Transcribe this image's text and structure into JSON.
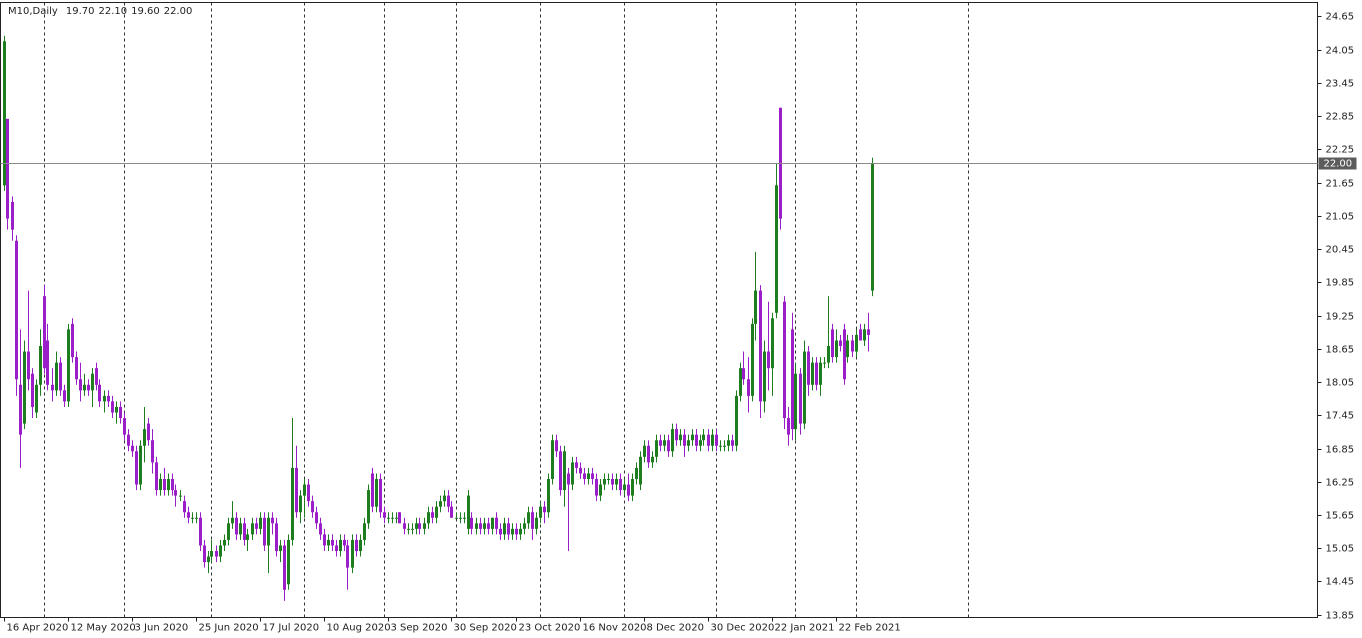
{
  "chart_data": {
    "type": "candlestick",
    "title": "M10,Daily",
    "header_ohlc": [
      {
        "value": 19.7,
        "label": "19.70"
      },
      {
        "value": 22.1,
        "label": "22.10"
      },
      {
        "value": 19.6,
        "label": "19.60"
      },
      {
        "value": 22.0,
        "label": "22.00"
      }
    ],
    "current_price": {
      "value": 22.0,
      "label": "22.00"
    },
    "up_color": "#1e7d1e",
    "down_color": "#9b1fc9",
    "ylim": [
      13.8,
      24.9
    ],
    "yticks": [
      24.65,
      24.05,
      23.45,
      22.85,
      22.25,
      21.65,
      21.05,
      20.45,
      19.85,
      19.25,
      18.65,
      18.05,
      17.45,
      16.85,
      16.25,
      15.65,
      15.05,
      14.45,
      13.85
    ],
    "xlim": [
      -0.75,
      328.5
    ],
    "xticks": [
      {
        "value": 0,
        "label": "16 Apr 2020"
      },
      {
        "value": 16,
        "label": "12 May 2020"
      },
      {
        "value": 32,
        "label": "3 Jun 2020"
      },
      {
        "value": 48,
        "label": "25 Jun 2020"
      },
      {
        "value": 64,
        "label": "17 Jul 2020"
      },
      {
        "value": 80,
        "label": "10 Aug 2020"
      },
      {
        "value": 96,
        "label": "3 Sep 2020"
      },
      {
        "value": 112,
        "label": "30 Sep 2020"
      },
      {
        "value": 128,
        "label": "23 Oct 2020"
      },
      {
        "value": 144,
        "label": "16 Nov 2020"
      },
      {
        "value": 160,
        "label": "8 Dec 2020"
      },
      {
        "value": 176,
        "label": "30 Dec 2020"
      },
      {
        "value": 192,
        "label": "22 Jan 2021"
      },
      {
        "value": 208,
        "label": "22 Feb 2021"
      }
    ],
    "period_separators": [
      10,
      30,
      52,
      75,
      95,
      113,
      134,
      155,
      178,
      198,
      213,
      241
    ],
    "open": [
      21.6,
      22.8,
      21.3,
      20.6,
      18.0,
      17.3,
      18.6,
      18.2,
      17.5,
      18.0,
      19.6,
      18.8,
      18.0,
      17.9,
      18.4,
      17.9,
      17.7,
      19.1,
      18.5,
      18.1,
      17.9,
      18.0,
      17.9,
      18.3,
      18.0,
      17.7,
      17.8,
      17.7,
      17.5,
      17.6,
      17.4,
      17.1,
      16.9,
      16.8,
      16.2,
      16.9,
      17.3,
      17.0,
      16.6,
      16.1,
      16.3,
      16.1,
      16.3,
      16.1,
      16.0,
      15.9,
      15.7,
      15.6,
      15.6,
      15.6,
      15.1,
      14.8,
      14.9,
      15.0,
      14.9,
      15.1,
      15.2,
      15.5,
      15.6,
      15.3,
      15.5,
      15.2,
      15.3,
      15.5,
      15.4,
      15.6,
      15.1,
      15.6,
      15.5,
      15.0,
      15.1,
      14.4,
      15.2,
      16.5,
      15.7,
      16.0,
      16.2,
      15.9,
      15.7,
      15.5,
      15.3,
      15.1,
      15.2,
      15.1,
      15.0,
      15.2,
      15.1,
      14.7,
      15.2,
      15.0,
      15.2,
      15.5,
      16.4,
      15.8,
      16.3,
      15.7,
      15.6,
      15.6,
      15.6,
      15.7,
      15.5,
      15.4,
      15.4,
      15.4,
      15.5,
      15.4,
      15.5,
      15.7,
      15.6,
      15.8,
      15.9,
      16.0,
      15.8,
      15.6,
      15.6,
      15.6,
      15.4,
      15.6,
      15.4,
      15.5,
      15.4,
      15.5,
      15.4,
      15.6,
      15.4,
      15.3,
      15.5,
      15.3,
      15.4,
      15.3,
      15.4,
      15.5,
      15.7,
      15.4,
      15.6,
      15.8,
      15.7,
      16.3,
      17.0,
      16.8,
      16.1,
      16.4,
      16.2,
      16.6,
      16.5,
      16.4,
      16.3,
      16.4,
      16.3,
      16.0,
      16.2,
      16.3,
      16.3,
      16.2,
      16.3,
      16.1,
      16.2,
      16.0,
      16.3,
      16.2,
      16.7,
      16.9,
      16.6,
      16.7,
      17.0,
      16.9,
      17.0,
      16.8,
      17.2,
      17.0,
      17.1,
      16.9,
      17.0,
      17.1,
      16.9,
      17.0,
      17.1,
      16.9,
      17.1,
      16.9,
      16.9,
      16.9,
      17.0,
      16.9,
      17.8,
      18.3,
      18.1,
      17.8,
      19.1,
      19.7,
      17.7,
      18.6,
      18.3,
      19.3,
      23.0,
      19.5,
      17.4,
      19.0,
      17.2,
      18.2,
      17.3,
      18.6,
      18.0,
      18.4,
      18.0,
      18.4,
      18.4,
      19.0,
      18.5,
      18.8,
      19.0,
      18.5,
      18.8,
      18.6,
      19.0,
      18.8,
      19.0,
      19.7
    ],
    "high": [
      24.3,
      22.8,
      21.4,
      20.7,
      19.0,
      18.8,
      19.7,
      18.3,
      18.1,
      19.0,
      19.8,
      19.1,
      18.3,
      18.6,
      18.5,
      18.0,
      19.1,
      19.2,
      18.6,
      18.4,
      18.2,
      18.1,
      18.3,
      18.4,
      18.1,
      17.9,
      17.9,
      17.8,
      17.7,
      17.7,
      17.5,
      17.2,
      17.0,
      16.9,
      17.0,
      17.6,
      17.4,
      17.2,
      16.7,
      16.4,
      16.5,
      16.4,
      16.4,
      16.2,
      16.1,
      16.0,
      15.8,
      15.7,
      15.7,
      15.7,
      15.2,
      15.0,
      15.2,
      15.1,
      15.2,
      15.3,
      15.6,
      15.9,
      15.7,
      15.6,
      15.6,
      15.4,
      15.6,
      15.6,
      15.7,
      15.7,
      15.7,
      15.7,
      15.6,
      15.2,
      15.2,
      15.3,
      17.4,
      16.9,
      16.1,
      16.3,
      16.3,
      16.0,
      15.8,
      15.6,
      15.4,
      15.3,
      15.3,
      15.2,
      15.3,
      15.3,
      15.2,
      15.3,
      15.3,
      15.3,
      15.6,
      16.2,
      16.5,
      16.4,
      16.4,
      15.8,
      15.7,
      15.7,
      15.7,
      15.7,
      15.6,
      15.5,
      15.5,
      15.6,
      15.6,
      15.6,
      15.8,
      15.8,
      15.9,
      16.0,
      16.1,
      16.1,
      15.9,
      15.7,
      15.7,
      15.7,
      16.1,
      15.7,
      15.6,
      15.6,
      15.6,
      15.6,
      15.6,
      15.7,
      15.5,
      15.6,
      15.6,
      15.5,
      15.5,
      15.5,
      15.6,
      15.8,
      15.8,
      15.7,
      15.9,
      15.9,
      16.4,
      17.1,
      17.1,
      16.9,
      16.9,
      16.5,
      16.7,
      16.7,
      16.6,
      16.5,
      16.5,
      16.5,
      16.4,
      16.3,
      16.4,
      16.4,
      16.4,
      16.4,
      16.4,
      16.3,
      16.4,
      16.4,
      16.6,
      16.8,
      17.0,
      17.0,
      16.8,
      17.1,
      17.1,
      17.1,
      17.1,
      17.3,
      17.3,
      17.2,
      17.2,
      17.1,
      17.2,
      17.2,
      17.1,
      17.2,
      17.2,
      17.2,
      17.2,
      17.0,
      17.0,
      17.1,
      17.1,
      17.9,
      18.4,
      18.6,
      18.5,
      19.2,
      20.4,
      19.8,
      18.8,
      19.5,
      19.3,
      22.0,
      23.0,
      19.6,
      17.6,
      19.3,
      18.4,
      18.3,
      18.8,
      18.7,
      18.5,
      18.5,
      18.5,
      18.5,
      19.6,
      19.1,
      19.0,
      18.9,
      19.1,
      18.9,
      18.9,
      19.0,
      19.1,
      19.1,
      19.3,
      22.1
    ],
    "low": [
      21.5,
      20.8,
      20.6,
      17.8,
      16.5,
      17.2,
      17.9,
      17.4,
      17.4,
      17.8,
      18.2,
      17.9,
      17.7,
      17.8,
      17.8,
      17.6,
      17.6,
      18.4,
      18.0,
      17.7,
      17.8,
      17.8,
      17.6,
      17.9,
      17.6,
      17.5,
      17.6,
      17.4,
      17.3,
      17.3,
      17.0,
      16.8,
      16.7,
      16.1,
      16.1,
      16.6,
      16.9,
      16.4,
      16.0,
      16.0,
      16.0,
      16.0,
      16.0,
      15.8,
      15.9,
      15.6,
      15.5,
      15.5,
      15.5,
      15.0,
      14.7,
      14.6,
      14.8,
      14.8,
      14.8,
      15.0,
      15.1,
      15.4,
      15.2,
      15.2,
      15.1,
      15.0,
      15.2,
      15.3,
      15.3,
      15.0,
      14.6,
      15.3,
      14.9,
      14.8,
      14.1,
      14.3,
      15.1,
      15.6,
      15.5,
      15.6,
      15.8,
      15.6,
      15.4,
      15.2,
      15.0,
      15.0,
      15.0,
      14.9,
      14.9,
      15.0,
      14.3,
      14.6,
      14.9,
      14.9,
      15.1,
      15.4,
      15.7,
      15.7,
      15.6,
      15.5,
      15.5,
      15.5,
      15.5,
      15.5,
      15.3,
      15.3,
      15.3,
      15.3,
      15.3,
      15.3,
      15.4,
      15.5,
      15.5,
      15.7,
      15.8,
      15.7,
      15.6,
      15.6,
      15.5,
      15.5,
      15.3,
      15.3,
      15.3,
      15.3,
      15.3,
      15.3,
      15.3,
      15.3,
      15.2,
      15.2,
      15.2,
      15.2,
      15.2,
      15.2,
      15.3,
      15.4,
      15.2,
      15.3,
      15.5,
      15.5,
      15.6,
      16.2,
      16.7,
      16.0,
      15.8,
      15.0,
      16.1,
      16.4,
      16.3,
      16.2,
      16.2,
      16.2,
      15.9,
      15.9,
      16.1,
      16.2,
      16.1,
      16.1,
      16.0,
      16.0,
      15.9,
      15.9,
      16.2,
      16.1,
      16.6,
      16.5,
      16.5,
      16.6,
      16.8,
      16.8,
      16.7,
      16.7,
      16.9,
      16.9,
      16.7,
      16.8,
      16.9,
      16.8,
      16.8,
      16.9,
      16.8,
      16.8,
      16.8,
      16.8,
      16.8,
      16.8,
      16.8,
      16.8,
      17.7,
      18.0,
      17.5,
      17.7,
      18.8,
      17.4,
      17.5,
      17.9,
      17.8,
      19.2,
      20.8,
      17.2,
      16.9,
      17.0,
      17.0,
      17.1,
      17.2,
      17.8,
      17.9,
      17.9,
      17.8,
      18.3,
      18.3,
      18.4,
      18.4,
      18.6,
      18.0,
      18.4,
      18.5,
      18.5,
      18.8,
      18.7,
      18.6,
      19.6
    ],
    "close": [
      24.2,
      21.0,
      20.8,
      18.1,
      17.1,
      18.6,
      18.1,
      17.6,
      18.0,
      18.7,
      18.3,
      18.0,
      17.9,
      18.4,
      17.9,
      17.7,
      19.0,
      18.5,
      18.1,
      17.9,
      18.0,
      17.9,
      18.2,
      18.0,
      17.7,
      17.8,
      17.7,
      17.5,
      17.6,
      17.4,
      17.1,
      16.9,
      16.8,
      16.2,
      16.9,
      17.2,
      17.0,
      16.6,
      16.1,
      16.3,
      16.1,
      16.3,
      16.1,
      16.0,
      16.0,
      15.7,
      15.6,
      15.6,
      15.6,
      15.1,
      14.8,
      14.9,
      15.0,
      14.9,
      15.1,
      15.2,
      15.5,
      15.6,
      15.3,
      15.5,
      15.2,
      15.3,
      15.5,
      15.4,
      15.6,
      15.1,
      15.6,
      15.5,
      15.0,
      15.1,
      14.3,
      15.2,
      16.5,
      15.7,
      16.0,
      16.2,
      15.9,
      15.7,
      15.5,
      15.3,
      15.1,
      15.2,
      15.1,
      15.0,
      15.2,
      15.1,
      14.7,
      15.2,
      15.0,
      15.2,
      15.5,
      16.1,
      15.8,
      16.3,
      15.7,
      15.6,
      15.6,
      15.6,
      15.6,
      15.5,
      15.4,
      15.4,
      15.4,
      15.5,
      15.4,
      15.5,
      15.7,
      15.6,
      15.8,
      15.9,
      16.0,
      15.8,
      15.6,
      15.6,
      15.6,
      15.6,
      16.0,
      15.4,
      15.5,
      15.4,
      15.5,
      15.4,
      15.6,
      15.4,
      15.3,
      15.5,
      15.3,
      15.4,
      15.3,
      15.4,
      15.5,
      15.7,
      15.4,
      15.6,
      15.8,
      15.7,
      16.3,
      17.0,
      16.8,
      16.1,
      16.8,
      16.2,
      16.6,
      16.5,
      16.4,
      16.3,
      16.4,
      16.3,
      16.0,
      16.2,
      16.3,
      16.3,
      16.2,
      16.3,
      16.1,
      16.2,
      16.0,
      16.3,
      16.5,
      16.7,
      16.9,
      16.6,
      16.7,
      17.0,
      16.9,
      17.0,
      16.8,
      17.2,
      17.0,
      17.1,
      16.9,
      17.0,
      17.1,
      16.9,
      17.0,
      17.1,
      16.9,
      17.1,
      16.9,
      16.9,
      16.9,
      17.0,
      16.9,
      17.8,
      18.3,
      18.1,
      17.8,
      19.1,
      19.7,
      17.7,
      18.6,
      18.3,
      19.2,
      21.6,
      21.0,
      17.4,
      17.1,
      17.2,
      18.2,
      17.3,
      18.6,
      18.0,
      18.4,
      18.0,
      18.4,
      18.4,
      18.7,
      18.5,
      18.8,
      18.7,
      18.1,
      18.8,
      18.6,
      18.9,
      18.8,
      19.0,
      18.9,
      22.0
    ]
  }
}
